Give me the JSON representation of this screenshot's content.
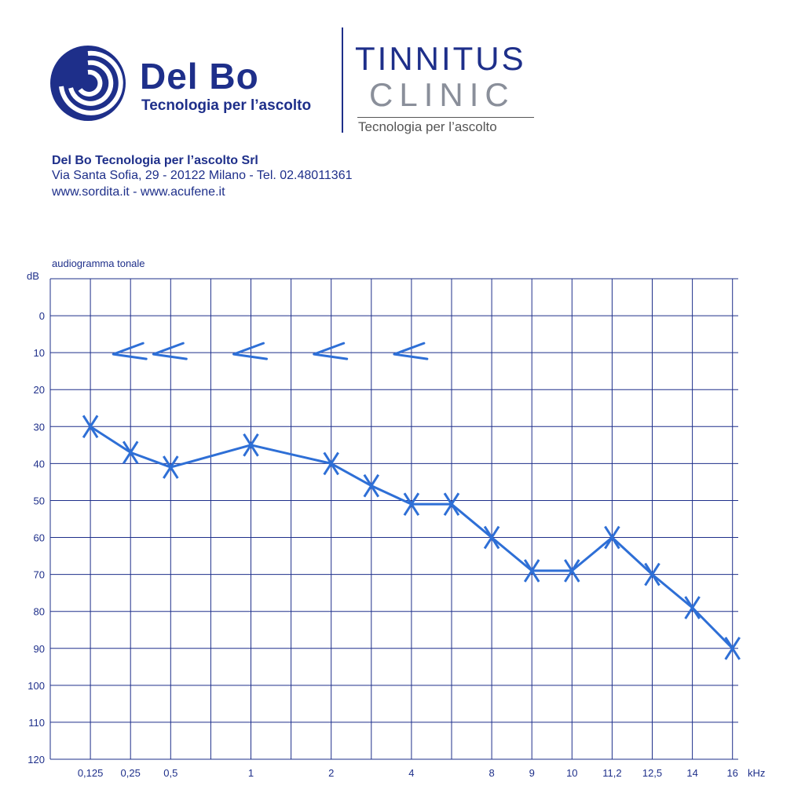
{
  "header": {
    "brand_name": "Del Bo",
    "brand_tagline": "Tecnologia per l’ascolto",
    "clinic_line1": "TINNITUS",
    "clinic_line2": "CLINIC",
    "clinic_tagline": "Tecnologia per l’ascolto",
    "company": "Del Bo Tecnologia per l’ascolto Srl",
    "address": "Via Santa Sofia, 29 - 20122 Milano - Tel. 02.48011361",
    "web": "www.sordita.it - www.acufene.it",
    "brand_color": "#1e2f8a"
  },
  "chart_data": {
    "type": "line",
    "title": "audiogramma tonale",
    "ylabel": "dB",
    "xlabel": "kHz",
    "categories": [
      "0,125",
      "0,25",
      "0,5",
      "1",
      "2",
      "4",
      "8",
      "9",
      "10",
      "11,2",
      "12,5",
      "14",
      "16"
    ],
    "ylim": [
      -10,
      120
    ],
    "y_ticks": [
      0,
      10,
      20,
      30,
      40,
      50,
      60,
      70,
      80,
      90,
      100,
      110,
      120
    ],
    "y_inverted": true,
    "grid": true,
    "series": [
      {
        "marker": "X",
        "color": "#2e6fd6",
        "points": [
          {
            "x": "0,125",
            "y": 30
          },
          {
            "x": "0,25",
            "y": 37
          },
          {
            "x": "0,5",
            "y": 41
          },
          {
            "x": "1",
            "y": 35
          },
          {
            "x": "2",
            "y": 40
          },
          {
            "x": "3",
            "y": 46
          },
          {
            "x": "4",
            "y": 51
          },
          {
            "x": "6",
            "y": 51
          },
          {
            "x": "8",
            "y": 60
          },
          {
            "x": "9",
            "y": 69
          },
          {
            "x": "10",
            "y": 69
          },
          {
            "x": "11,2",
            "y": 60
          },
          {
            "x": "12,5",
            "y": 70
          },
          {
            "x": "14",
            "y": 79
          },
          {
            "x": "16",
            "y": 90
          }
        ]
      },
      {
        "marker": "<",
        "color": "#2e6fd6",
        "points": [
          {
            "x": "0,25",
            "y": 10
          },
          {
            "x": "0,5",
            "y": 10
          },
          {
            "x": "1",
            "y": 10
          },
          {
            "x": "2",
            "y": 10
          },
          {
            "x": "4",
            "y": 10
          }
        ]
      }
    ]
  }
}
